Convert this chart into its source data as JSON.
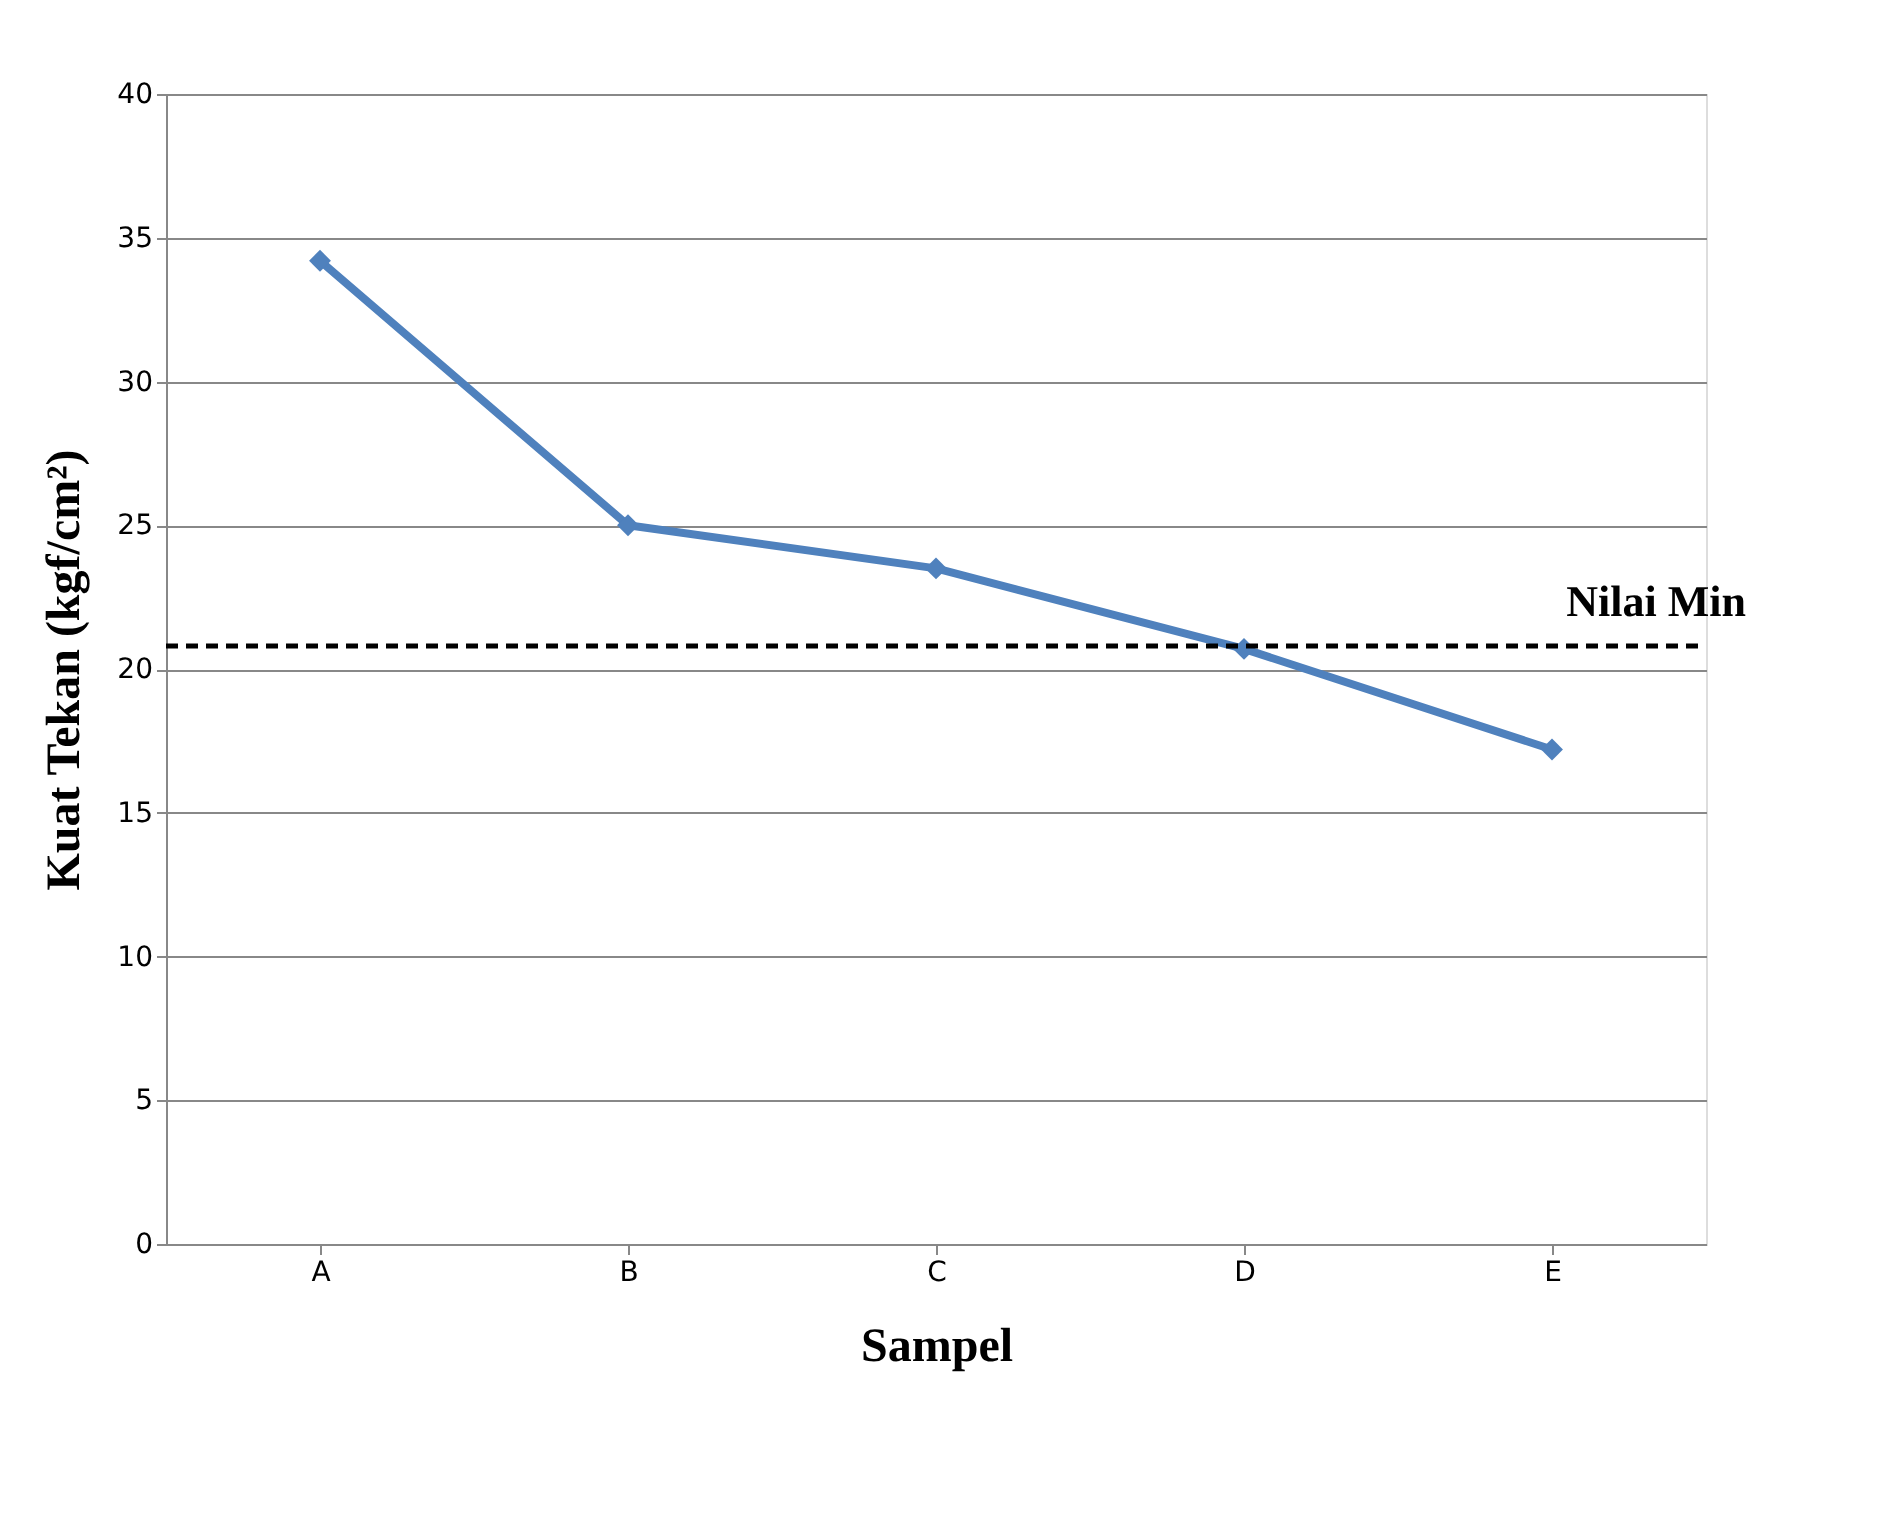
{
  "chart_data": {
    "type": "line",
    "xlabel": "Sampel",
    "ylabel": "Kuat Tekan (kgf/cm²)",
    "categories": [
      "A",
      "B",
      "C",
      "D",
      "E"
    ],
    "series": [
      {
        "color": "#4f81bd",
        "values": [
          34.2,
          25.0,
          23.5,
          20.7,
          17.2
        ]
      }
    ],
    "ylim": [
      0,
      40
    ],
    "yticks": [
      0,
      5,
      10,
      15,
      20,
      25,
      30,
      35,
      40
    ],
    "grid": "y",
    "marker": "diamond",
    "line_style": "solid",
    "ref_lines": [
      {
        "axis": "y",
        "value": 20.8,
        "label": "Nilai Min",
        "color": "#000000",
        "line_style": "dashed"
      }
    ]
  }
}
